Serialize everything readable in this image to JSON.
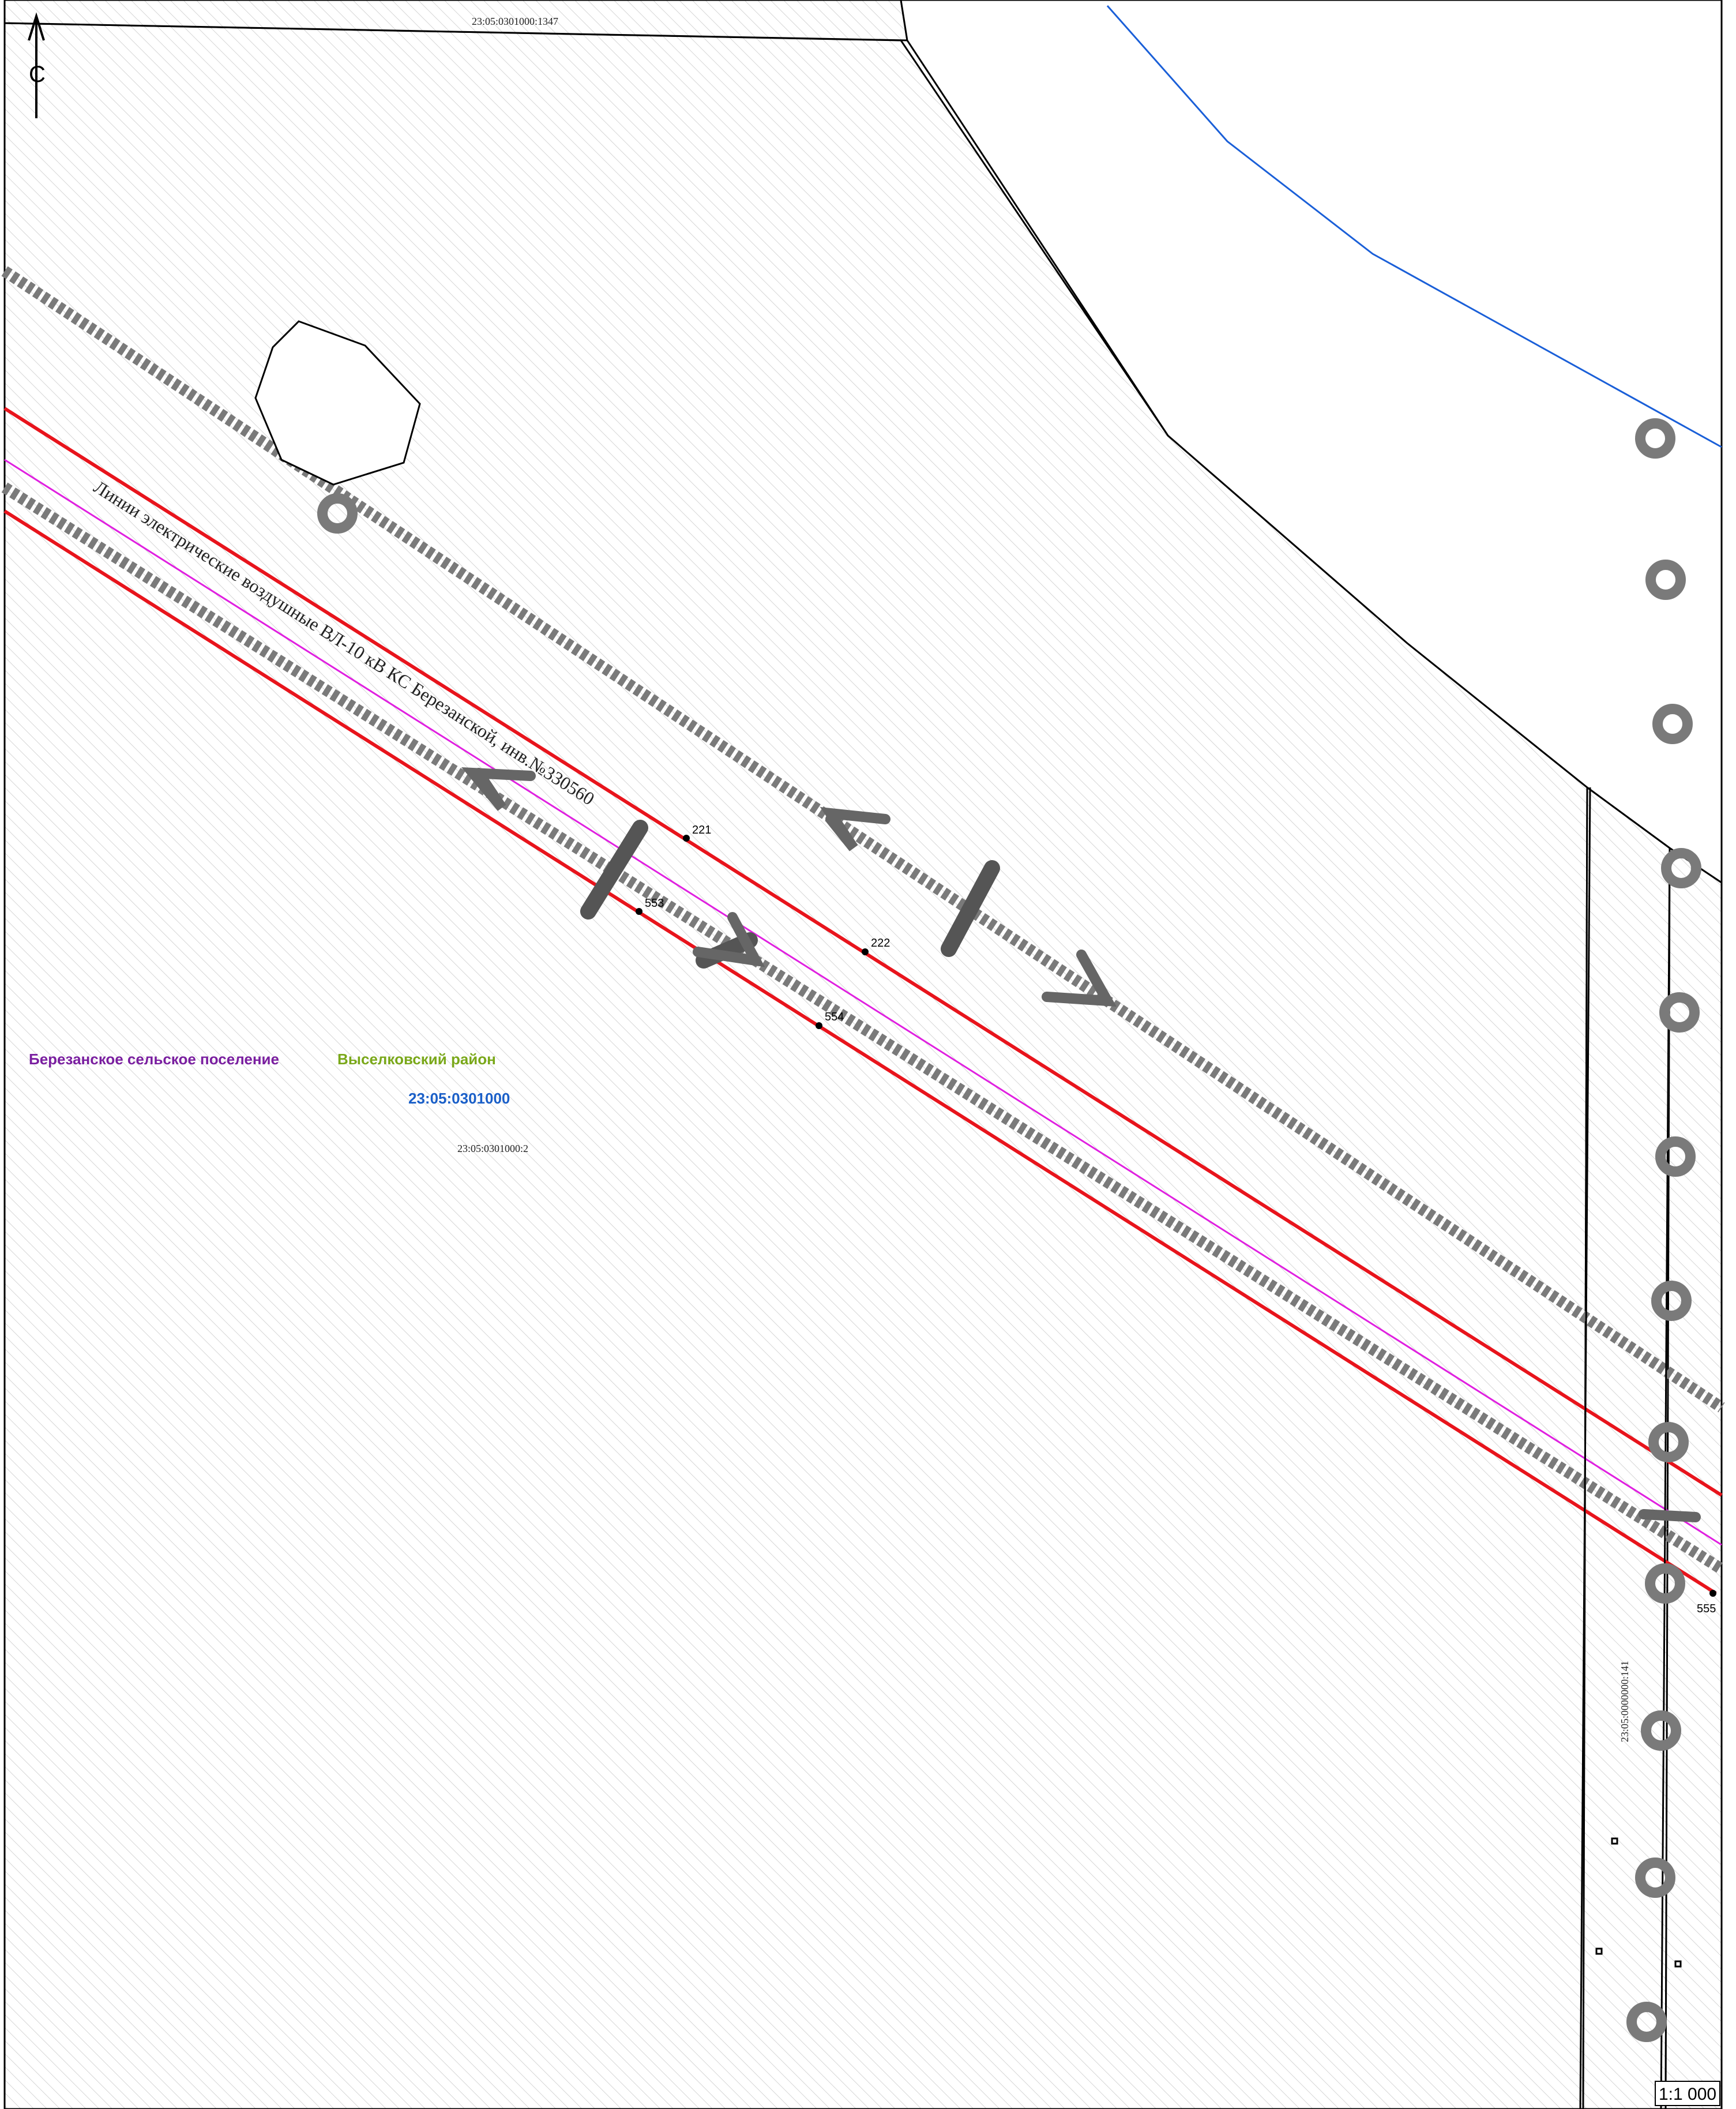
{
  "north_arrow": {
    "label": "С"
  },
  "scale": {
    "label": "1:1 000"
  },
  "parcels": {
    "top": "23:05:0301000:1347",
    "main": "23:05:0301000:2",
    "strip": "23:05:0000000:141"
  },
  "territory": {
    "settlement": "Березанское сельское поселение",
    "district": "Выселковский район",
    "quarter": "23:05:0301000"
  },
  "power_line": {
    "label": "Линии электрические воздушные ВЛ-10 кВ КС Березанской, инв.№330560"
  },
  "points": [
    {
      "id": "221"
    },
    {
      "id": "222"
    },
    {
      "id": "553"
    },
    {
      "id": "554"
    },
    {
      "id": "555"
    }
  ],
  "colors": {
    "zone_boundary": "#e8141c",
    "axis_line": "#e020e0",
    "water": "#1a5fd8",
    "settlement": "#7a1fa0",
    "district": "#7aa81a",
    "quarter": "#1a5fc8"
  }
}
